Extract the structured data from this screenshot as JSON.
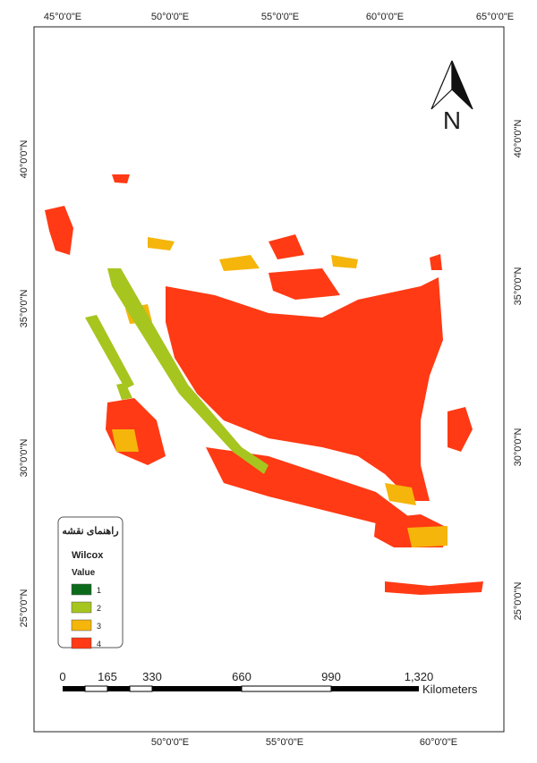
{
  "graticule": {
    "top": [
      "45°0'0\"E",
      "50°0'0\"E",
      "55°0'0\"E",
      "60°0'0\"E",
      "65°0'0\"E"
    ],
    "bottom": [
      "50°0'0\"E",
      "55°0'0\"E",
      "60°0'0\"E"
    ],
    "left": [
      "40°0'0\"N",
      "35°0'0\"N",
      "30°0'0\"N",
      "25°0'0\"N"
    ],
    "right": [
      "40°0'0\"N",
      "35°0'0\"N",
      "30°0'0\"N",
      "25°0'0\"N"
    ]
  },
  "north_arrow": {
    "label": "N"
  },
  "legend": {
    "title": "راهنمای نقشه",
    "layer": "Wilcox",
    "field": "Value",
    "items": [
      {
        "label": "1",
        "color": "#0b6b1a"
      },
      {
        "label": "2",
        "color": "#a6c51f"
      },
      {
        "label": "3",
        "color": "#f5b50a"
      },
      {
        "label": "4",
        "color": "#ff3a14"
      }
    ]
  },
  "scale_bar": {
    "labels": [
      "0",
      "165",
      "330",
      "660",
      "990",
      "1,320"
    ],
    "unit": "Kilometers"
  }
}
